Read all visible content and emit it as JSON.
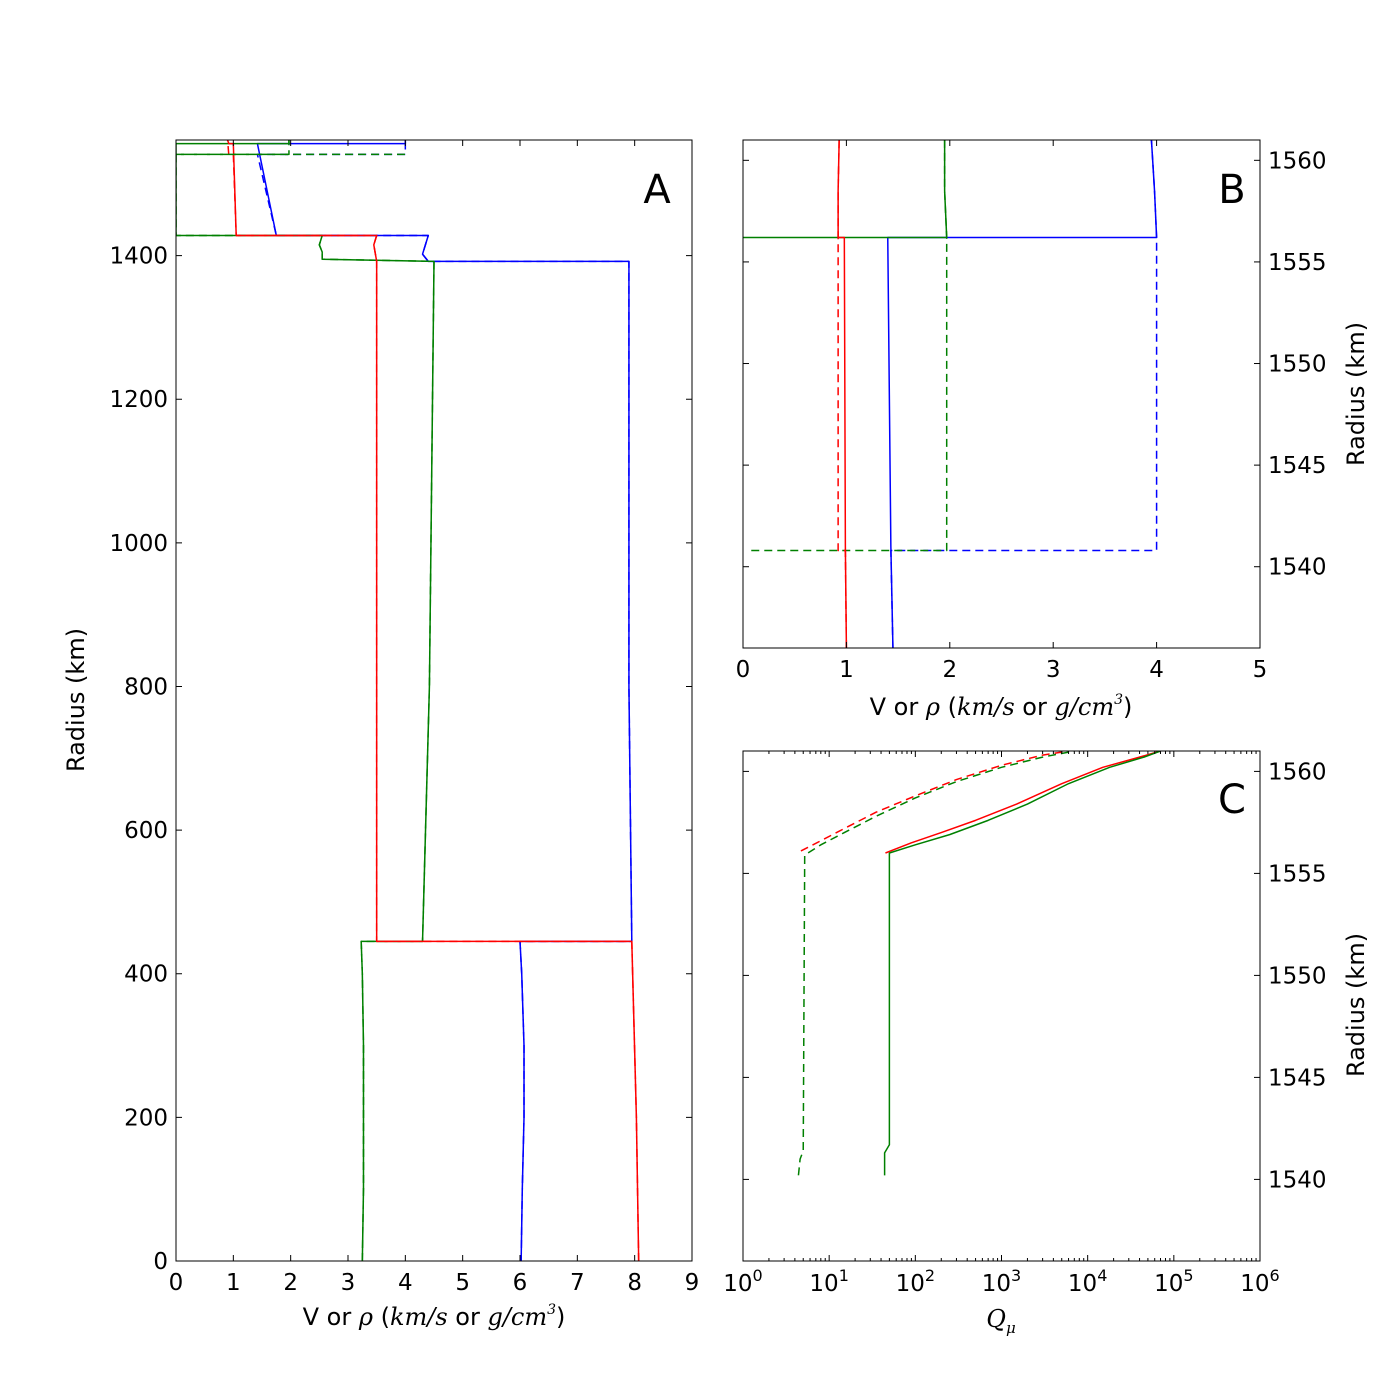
{
  "chart_data": [
    {
      "id": "A",
      "type": "line",
      "panel_label": "A",
      "xlabel": "V or ρ (km/s or g/cm³)",
      "xlabel_parts": {
        "pre": "V or ",
        "rho": "ρ",
        "open": " (",
        "u1": "km/s",
        "mid": " or ",
        "u2": "g/cm",
        "sup": "3",
        "close": ")"
      },
      "ylabel": "Radius (km)",
      "xlim": [
        0,
        9
      ],
      "ylim": [
        0,
        1561
      ],
      "xticks": [
        0,
        1,
        2,
        3,
        4,
        5,
        6,
        7,
        8,
        9
      ],
      "yticks": [
        0,
        200,
        400,
        600,
        800,
        1000,
        1200,
        1400
      ],
      "y_axis_side": "left",
      "series": [
        {
          "color": "#0000ff",
          "dash": "solid",
          "points": [
            [
              6.02,
              0
            ],
            [
              6.04,
              100
            ],
            [
              6.07,
              200
            ],
            [
              6.07,
              300
            ],
            [
              6.03,
              400
            ],
            [
              6.0,
              445
            ],
            [
              7.95,
              445
            ],
            [
              7.9,
              800
            ],
            [
              7.9,
              1392
            ],
            [
              4.4,
              1392
            ],
            [
              4.3,
              1402
            ],
            [
              4.35,
              1415
            ],
            [
              4.4,
              1428
            ],
            [
              1.75,
              1428
            ],
            [
              1.42,
              1556
            ],
            [
              4.0,
              1556
            ],
            [
              4.0,
              1561
            ]
          ]
        },
        {
          "color": "#0000ff",
          "dash": "dashed",
          "points": [
            [
              6.02,
              0
            ],
            [
              6.04,
              100
            ],
            [
              6.07,
              200
            ],
            [
              6.07,
              300
            ],
            [
              6.03,
              400
            ],
            [
              6.0,
              445
            ],
            [
              7.95,
              445
            ],
            [
              7.9,
              800
            ],
            [
              7.9,
              1392
            ],
            [
              4.4,
              1392
            ],
            [
              4.3,
              1402
            ],
            [
              4.35,
              1415
            ],
            [
              4.4,
              1428
            ],
            [
              1.75,
              1428
            ],
            [
              1.42,
              1541
            ],
            [
              4.0,
              1541
            ],
            [
              4.0,
              1561
            ]
          ]
        },
        {
          "color": "#008000",
          "dash": "solid",
          "points": [
            [
              3.25,
              0
            ],
            [
              3.27,
              100
            ],
            [
              3.27,
              200
            ],
            [
              3.27,
              300
            ],
            [
              3.25,
              400
            ],
            [
              3.23,
              445
            ],
            [
              4.3,
              445
            ],
            [
              4.42,
              800
            ],
            [
              4.5,
              1392
            ],
            [
              2.55,
              1395
            ],
            [
              2.55,
              1405
            ],
            [
              2.5,
              1415
            ],
            [
              2.55,
              1428
            ],
            [
              0,
              1428
            ],
            [
              0,
              1556
            ],
            [
              1.97,
              1556
            ],
            [
              1.97,
              1561
            ]
          ]
        },
        {
          "color": "#008000",
          "dash": "dashed",
          "points": [
            [
              3.25,
              0
            ],
            [
              3.27,
              100
            ],
            [
              3.27,
              200
            ],
            [
              3.27,
              300
            ],
            [
              3.25,
              400
            ],
            [
              3.23,
              445
            ],
            [
              4.3,
              445
            ],
            [
              4.42,
              800
            ],
            [
              4.5,
              1392
            ],
            [
              2.55,
              1395
            ],
            [
              2.55,
              1405
            ],
            [
              2.5,
              1415
            ],
            [
              2.55,
              1428
            ],
            [
              0,
              1428
            ],
            [
              0,
              1541
            ],
            [
              1.97,
              1541
            ],
            [
              1.97,
              1561
            ]
          ]
        },
        {
          "color": "#ff0000",
          "dash": "solid",
          "points": [
            [
              8.07,
              0
            ],
            [
              8.03,
              200
            ],
            [
              7.95,
              445
            ],
            [
              3.5,
              445
            ],
            [
              3.5,
              1392
            ],
            [
              3.45,
              1415
            ],
            [
              3.5,
              1428
            ],
            [
              1.05,
              1428
            ],
            [
              1.0,
              1556
            ],
            [
              0.92,
              1556
            ],
            [
              0.9,
              1561
            ]
          ]
        },
        {
          "color": "#ff0000",
          "dash": "dashed",
          "points": [
            [
              8.07,
              0
            ],
            [
              8.03,
              200
            ],
            [
              7.95,
              445
            ],
            [
              3.5,
              445
            ],
            [
              3.5,
              1392
            ],
            [
              3.45,
              1415
            ],
            [
              3.5,
              1428
            ],
            [
              1.05,
              1428
            ],
            [
              1.0,
              1541
            ],
            [
              0.92,
              1541
            ],
            [
              0.9,
              1561
            ]
          ]
        },
        {
          "color": "#008000",
          "dash": "dashed",
          "points": [
            [
              0,
              1541
            ],
            [
              4.0,
              1541
            ]
          ]
        }
      ]
    },
    {
      "id": "B",
      "type": "line",
      "panel_label": "B",
      "xlabel": "V or ρ (km/s or g/cm³)",
      "xlabel_parts": {
        "pre": "V or ",
        "rho": "ρ",
        "open": " (",
        "u1": "km/s",
        "mid": " or ",
        "u2": "g/cm",
        "sup": "3",
        "close": ")"
      },
      "ylabel": "Radius (km)",
      "xlim": [
        0,
        5
      ],
      "ylim": [
        1536,
        1561
      ],
      "xticks": [
        0,
        1,
        2,
        3,
        4,
        5
      ],
      "yticks": [
        1540,
        1545,
        1550,
        1555,
        1560
      ],
      "y_axis_side": "right",
      "series": [
        {
          "color": "#0000ff",
          "dash": "solid",
          "points": [
            [
              1.45,
              1536
            ],
            [
              1.43,
              1541
            ],
            [
              1.4,
              1556.2
            ],
            [
              4.0,
              1556.2
            ],
            [
              3.98,
              1558.5
            ],
            [
              3.95,
              1561
            ]
          ]
        },
        {
          "color": "#0000ff",
          "dash": "dashed",
          "points": [
            [
              1.45,
              1536
            ],
            [
              1.43,
              1540.8
            ],
            [
              4.0,
              1540.8
            ],
            [
              4.0,
              1556.2
            ],
            [
              3.98,
              1558.5
            ],
            [
              3.95,
              1561
            ]
          ]
        },
        {
          "color": "#008000",
          "dash": "solid",
          "points": [
            [
              0,
              1556.2
            ],
            [
              1.97,
              1556.2
            ],
            [
              1.95,
              1558.5
            ],
            [
              1.95,
              1561
            ]
          ]
        },
        {
          "color": "#008000",
          "dash": "dashed",
          "points": [
            [
              0.08,
              1540.8
            ],
            [
              1.97,
              1540.8
            ],
            [
              1.97,
              1556.2
            ],
            [
              1.95,
              1558.5
            ],
            [
              1.95,
              1561
            ]
          ]
        },
        {
          "color": "#ff0000",
          "dash": "solid",
          "points": [
            [
              1.0,
              1536
            ],
            [
              0.99,
              1541
            ],
            [
              0.98,
              1556.2
            ],
            [
              0.92,
              1556.2
            ],
            [
              0.92,
              1558.5
            ],
            [
              0.93,
              1561
            ]
          ]
        },
        {
          "color": "#ff0000",
          "dash": "dashed",
          "points": [
            [
              1.0,
              1536
            ],
            [
              0.99,
              1540.8
            ],
            [
              0.92,
              1540.8
            ],
            [
              0.92,
              1556.2
            ],
            [
              0.92,
              1558.5
            ],
            [
              0.93,
              1561
            ]
          ]
        }
      ]
    },
    {
      "id": "C",
      "type": "line",
      "panel_label": "C",
      "xlabel": "Qμ",
      "xlabel_parts": {
        "base": "Q",
        "sub": "μ"
      },
      "ylabel": "Radius (km)",
      "xscale": "log",
      "xlim": [
        1,
        1000000
      ],
      "ylim": [
        1536,
        1561
      ],
      "xticks": [
        1,
        10,
        100,
        1000,
        10000,
        100000,
        1000000
      ],
      "xtick_labels": [
        {
          "base": "10",
          "exp": "0"
        },
        {
          "base": "10",
          "exp": "1"
        },
        {
          "base": "10",
          "exp": "2"
        },
        {
          "base": "10",
          "exp": "3"
        },
        {
          "base": "10",
          "exp": "4"
        },
        {
          "base": "10",
          "exp": "5"
        },
        {
          "base": "10",
          "exp": "6"
        }
      ],
      "yticks": [
        1540,
        1545,
        1550,
        1555,
        1560
      ],
      "y_axis_side": "right",
      "series": [
        {
          "color": "#ff0000",
          "dash": "solid",
          "points": [
            [
              45,
              1556.0
            ],
            [
              90,
              1556.5
            ],
            [
              200,
              1557.0
            ],
            [
              500,
              1557.6
            ],
            [
              1500,
              1558.4
            ],
            [
              5000,
              1559.4
            ],
            [
              15000,
              1560.2
            ],
            [
              40000,
              1560.7
            ],
            [
              70000,
              1561.0
            ]
          ]
        },
        {
          "color": "#008000",
          "dash": "solid",
          "points": [
            [
              44,
              1540.2
            ],
            [
              44,
              1541.3
            ],
            [
              50,
              1541.7
            ],
            [
              50,
              1556.0
            ],
            [
              100,
              1556.4
            ],
            [
              250,
              1556.9
            ],
            [
              700,
              1557.6
            ],
            [
              2000,
              1558.4
            ],
            [
              6000,
              1559.4
            ],
            [
              18000,
              1560.2
            ],
            [
              45000,
              1560.7
            ],
            [
              70000,
              1561.0
            ]
          ]
        },
        {
          "color": "#ff0000",
          "dash": "dashed",
          "points": [
            [
              4.7,
              1556.1
            ],
            [
              8,
              1556.6
            ],
            [
              15,
              1557.2
            ],
            [
              35,
              1558.0
            ],
            [
              100,
              1558.8
            ],
            [
              300,
              1559.6
            ],
            [
              1000,
              1560.3
            ],
            [
              3000,
              1560.8
            ],
            [
              6000,
              1561.0
            ]
          ]
        },
        {
          "color": "#008000",
          "dash": "dashed",
          "points": [
            [
              4.4,
              1540.2
            ],
            [
              4.6,
              1541.0
            ],
            [
              5.0,
              1541.4
            ],
            [
              5.2,
              1555.9
            ],
            [
              8,
              1556.4
            ],
            [
              15,
              1557.0
            ],
            [
              35,
              1557.8
            ],
            [
              100,
              1558.7
            ],
            [
              300,
              1559.5
            ],
            [
              1000,
              1560.2
            ],
            [
              3000,
              1560.7
            ],
            [
              7000,
              1561.0
            ]
          ]
        }
      ]
    }
  ]
}
